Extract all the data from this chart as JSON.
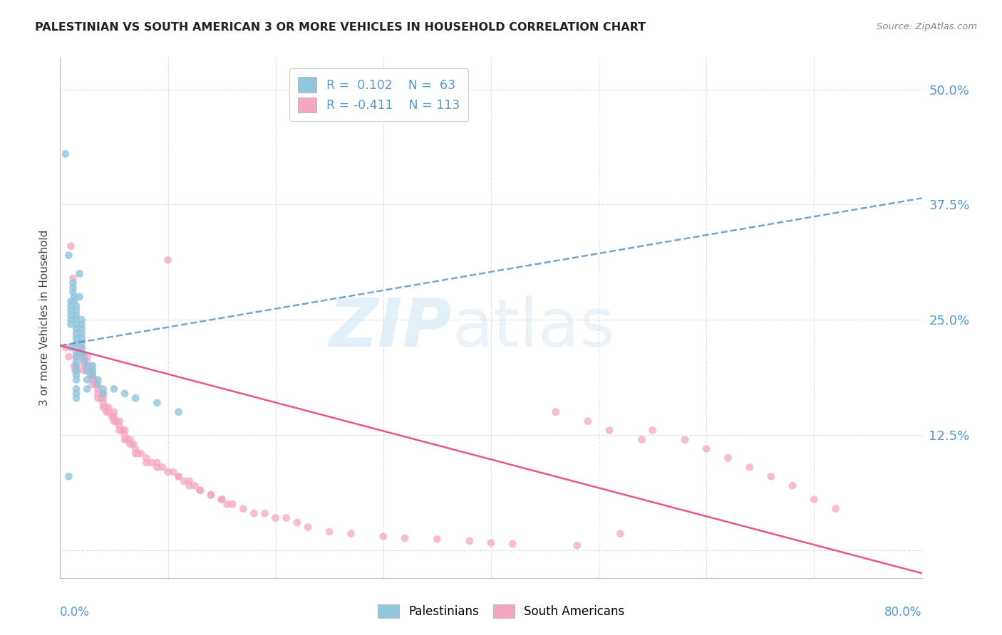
{
  "title": "PALESTINIAN VS SOUTH AMERICAN 3 OR MORE VEHICLES IN HOUSEHOLD CORRELATION CHART",
  "source": "Source: ZipAtlas.com",
  "ylabel": "3 or more Vehicles in Household",
  "yticks": [
    0.0,
    0.125,
    0.25,
    0.375,
    0.5
  ],
  "ytick_labels": [
    "",
    "12.5%",
    "25.0%",
    "37.5%",
    "50.0%"
  ],
  "xlim": [
    0.0,
    0.8
  ],
  "ylim": [
    -0.03,
    0.535
  ],
  "blue_color": "#92c5de",
  "pink_color": "#f4a6c0",
  "blue_line_color": "#3b7fc4",
  "pink_line_color": "#e8558a",
  "background_color": "#ffffff",
  "grid_color": "#e0e0e0",
  "tick_label_color": "#5599cc",
  "palestinians_x": [
    0.005,
    0.008,
    0.008,
    0.01,
    0.01,
    0.01,
    0.01,
    0.01,
    0.01,
    0.01,
    0.012,
    0.012,
    0.012,
    0.013,
    0.013,
    0.015,
    0.015,
    0.015,
    0.015,
    0.015,
    0.015,
    0.015,
    0.015,
    0.015,
    0.015,
    0.015,
    0.015,
    0.015,
    0.015,
    0.015,
    0.015,
    0.015,
    0.015,
    0.015,
    0.015,
    0.018,
    0.018,
    0.02,
    0.02,
    0.02,
    0.02,
    0.02,
    0.02,
    0.02,
    0.02,
    0.022,
    0.022,
    0.025,
    0.025,
    0.025,
    0.025,
    0.03,
    0.03,
    0.03,
    0.035,
    0.035,
    0.04,
    0.04,
    0.05,
    0.06,
    0.07,
    0.09,
    0.11
  ],
  "palestinians_y": [
    0.43,
    0.32,
    0.08,
    0.27,
    0.265,
    0.26,
    0.255,
    0.25,
    0.245,
    0.22,
    0.29,
    0.285,
    0.28,
    0.275,
    0.27,
    0.265,
    0.26,
    0.255,
    0.25,
    0.245,
    0.24,
    0.235,
    0.23,
    0.225,
    0.22,
    0.215,
    0.21,
    0.205,
    0.2,
    0.195,
    0.19,
    0.185,
    0.175,
    0.17,
    0.165,
    0.3,
    0.275,
    0.25,
    0.245,
    0.24,
    0.235,
    0.23,
    0.225,
    0.22,
    0.215,
    0.21,
    0.205,
    0.2,
    0.195,
    0.185,
    0.175,
    0.2,
    0.195,
    0.19,
    0.185,
    0.18,
    0.175,
    0.17,
    0.175,
    0.17,
    0.165,
    0.16,
    0.15
  ],
  "south_american_x": [
    0.005,
    0.008,
    0.01,
    0.012,
    0.013,
    0.014,
    0.015,
    0.015,
    0.016,
    0.018,
    0.02,
    0.02,
    0.02,
    0.022,
    0.022,
    0.022,
    0.025,
    0.025,
    0.025,
    0.025,
    0.028,
    0.03,
    0.03,
    0.03,
    0.03,
    0.03,
    0.032,
    0.033,
    0.035,
    0.035,
    0.035,
    0.038,
    0.04,
    0.04,
    0.04,
    0.04,
    0.042,
    0.043,
    0.045,
    0.045,
    0.048,
    0.05,
    0.05,
    0.05,
    0.052,
    0.055,
    0.055,
    0.055,
    0.058,
    0.06,
    0.06,
    0.06,
    0.062,
    0.065,
    0.065,
    0.068,
    0.07,
    0.07,
    0.072,
    0.075,
    0.08,
    0.08,
    0.085,
    0.09,
    0.09,
    0.095,
    0.1,
    0.1,
    0.105,
    0.11,
    0.11,
    0.115,
    0.12,
    0.12,
    0.125,
    0.13,
    0.13,
    0.14,
    0.14,
    0.15,
    0.15,
    0.155,
    0.16,
    0.17,
    0.18,
    0.19,
    0.2,
    0.21,
    0.22,
    0.23,
    0.25,
    0.27,
    0.3,
    0.32,
    0.35,
    0.38,
    0.4,
    0.42,
    0.48,
    0.52,
    0.55,
    0.58,
    0.6,
    0.62,
    0.64,
    0.66,
    0.68,
    0.7,
    0.72,
    0.46,
    0.49,
    0.51,
    0.54
  ],
  "south_american_y": [
    0.22,
    0.21,
    0.33,
    0.295,
    0.2,
    0.195,
    0.21,
    0.2,
    0.195,
    0.215,
    0.22,
    0.215,
    0.21,
    0.205,
    0.2,
    0.195,
    0.21,
    0.205,
    0.2,
    0.195,
    0.19,
    0.2,
    0.195,
    0.19,
    0.185,
    0.18,
    0.185,
    0.18,
    0.175,
    0.17,
    0.165,
    0.165,
    0.17,
    0.165,
    0.16,
    0.155,
    0.155,
    0.15,
    0.155,
    0.15,
    0.145,
    0.15,
    0.145,
    0.14,
    0.14,
    0.14,
    0.135,
    0.13,
    0.13,
    0.13,
    0.125,
    0.12,
    0.12,
    0.12,
    0.115,
    0.115,
    0.11,
    0.105,
    0.105,
    0.105,
    0.1,
    0.095,
    0.095,
    0.095,
    0.09,
    0.09,
    0.085,
    0.315,
    0.085,
    0.08,
    0.08,
    0.075,
    0.075,
    0.07,
    0.07,
    0.065,
    0.065,
    0.06,
    0.06,
    0.055,
    0.055,
    0.05,
    0.05,
    0.045,
    0.04,
    0.04,
    0.035,
    0.035,
    0.03,
    0.025,
    0.02,
    0.018,
    0.015,
    0.013,
    0.012,
    0.01,
    0.008,
    0.007,
    0.005,
    0.018,
    0.13,
    0.12,
    0.11,
    0.1,
    0.09,
    0.08,
    0.07,
    0.055,
    0.045,
    0.15,
    0.14,
    0.13,
    0.12
  ],
  "blue_trendline_x": [
    0.0,
    0.8
  ],
  "blue_trendline_y": [
    0.222,
    0.382
  ],
  "pink_trendline_x": [
    0.0,
    0.8
  ],
  "pink_trendline_y": [
    0.222,
    -0.025
  ]
}
